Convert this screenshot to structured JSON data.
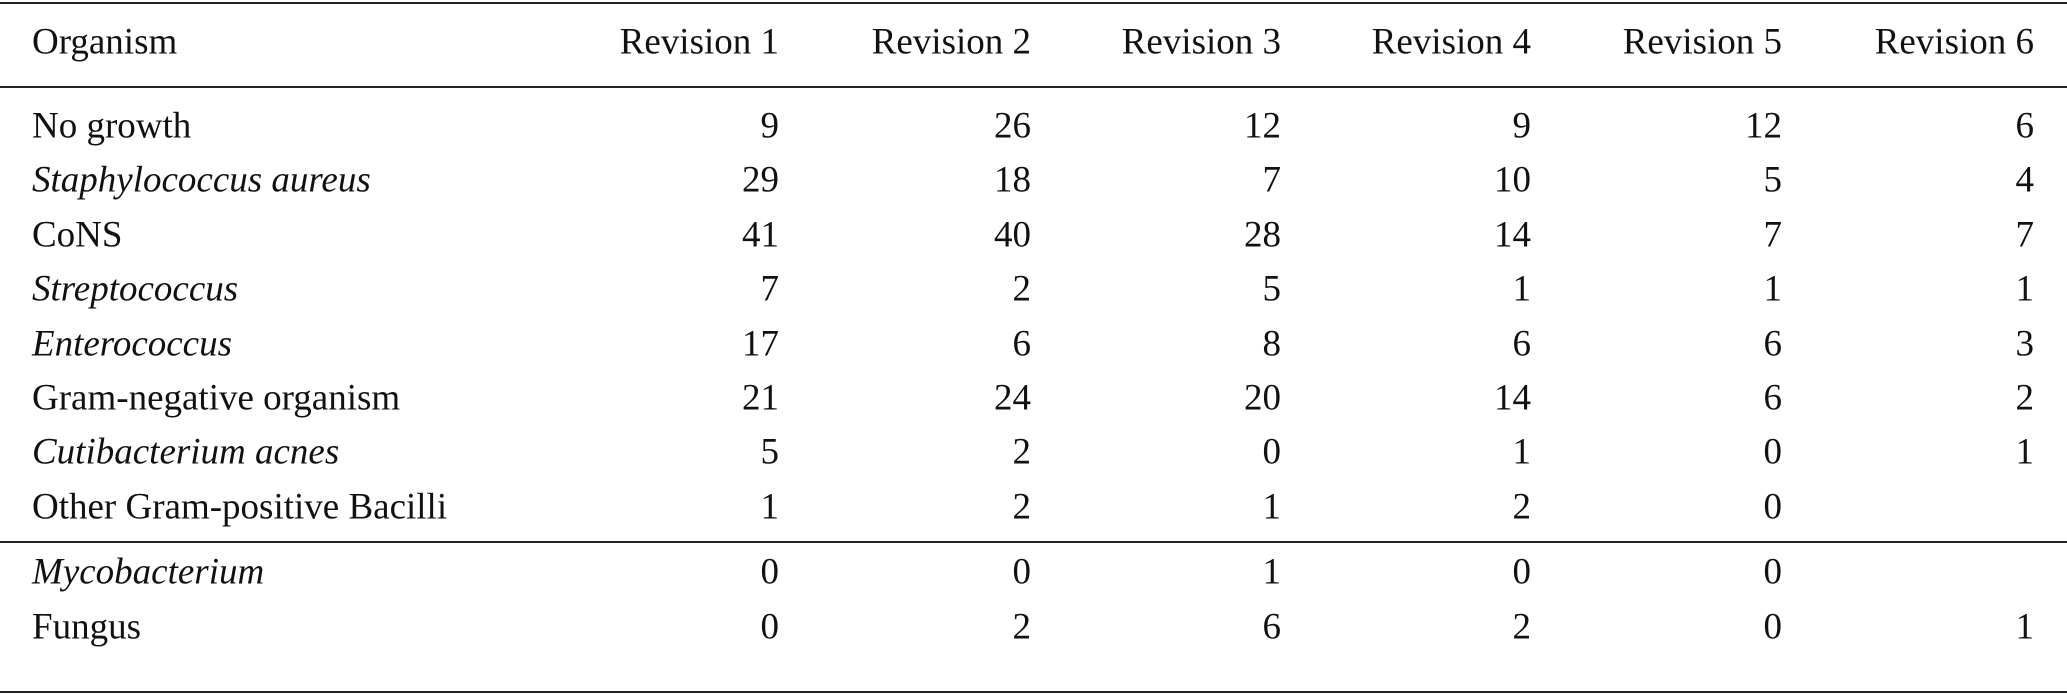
{
  "table": {
    "header": [
      "Organism",
      "Revision 1",
      "Revision 2",
      "Revision 3",
      "Revision 4",
      "Revision 5",
      "Revision 6"
    ],
    "groups": [
      [
        {
          "organism": "No growth",
          "italic": false,
          "values": [
            9,
            26,
            12,
            9,
            12,
            6
          ]
        },
        {
          "organism": "Staphylococcus aureus",
          "italic": true,
          "values": [
            29,
            18,
            7,
            10,
            5,
            4
          ]
        },
        {
          "organism": "CoNS",
          "italic": false,
          "values": [
            41,
            40,
            28,
            14,
            7,
            7
          ]
        },
        {
          "organism": "Streptococcus",
          "italic": true,
          "values": [
            7,
            2,
            5,
            1,
            1,
            1
          ]
        },
        {
          "organism": "Enterococcus",
          "italic": true,
          "values": [
            17,
            6,
            8,
            6,
            6,
            3
          ]
        },
        {
          "organism": "Gram-negative organism",
          "italic": false,
          "values": [
            21,
            24,
            20,
            14,
            6,
            2
          ]
        },
        {
          "organism": "Cutibacterium acnes",
          "italic": true,
          "values": [
            5,
            2,
            0,
            1,
            0,
            1
          ]
        },
        {
          "organism": "Other Gram-positive Bacilli",
          "italic": false,
          "values": [
            1,
            2,
            1,
            2,
            0,
            null
          ]
        }
      ],
      [
        {
          "organism": "Mycobacterium",
          "italic": true,
          "values": [
            0,
            0,
            1,
            0,
            0,
            null
          ]
        },
        {
          "organism": "Fungus",
          "italic": false,
          "values": [
            0,
            2,
            6,
            2,
            0,
            1
          ]
        }
      ]
    ]
  }
}
